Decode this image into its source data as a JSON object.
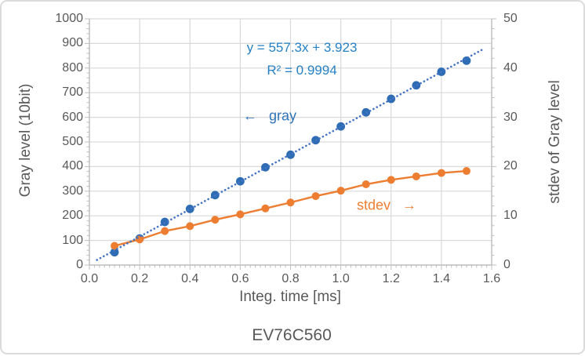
{
  "chart": {
    "title": "EV76C560",
    "x_axis": {
      "label": "Integ. time [ms]",
      "min": 0.0,
      "max": 1.6,
      "tick_step": 0.2,
      "minor_step": 0.02,
      "ticks": [
        "0.0",
        "0.2",
        "0.4",
        "0.6",
        "0.8",
        "1.0",
        "1.2",
        "1.4",
        "1.6"
      ]
    },
    "y_left": {
      "label": "Gray level (10bit)",
      "min": 0,
      "max": 1000,
      "tick_step": 100,
      "minor_step": 20,
      "ticks": [
        "0",
        "100",
        "200",
        "300",
        "400",
        "500",
        "600",
        "700",
        "800",
        "900",
        "1000"
      ]
    },
    "y_right": {
      "label": "stdev of Gray level",
      "min": 0,
      "max": 50,
      "tick_step": 10,
      "minor_step": 2,
      "ticks": [
        "0",
        "10",
        "20",
        "30",
        "40",
        "50"
      ]
    },
    "annotation": {
      "equation": "y = 557.3x + 3.923",
      "r_squared": "R² = 0.9994"
    },
    "series_labels": {
      "gray": "←   gray",
      "stdev": "stdev   →"
    },
    "colors": {
      "gray_series": "#2e6db4",
      "trend": "#4472c4",
      "stdev_series": "#ed7d31",
      "grid": "#d9d9d9",
      "axis": "#bfbfbf",
      "text": "#595959",
      "annotation_text": "#2581c4"
    }
  },
  "chart_data": {
    "type": "scatter+line",
    "title": "EV76C560",
    "xlabel": "Integ. time [ms]",
    "ylabel_left": "Gray level (10bit)",
    "ylabel_right": "stdev of Gray level",
    "xlim": [
      0.0,
      1.6
    ],
    "ylim_left": [
      0,
      1000
    ],
    "ylim_right": [
      0,
      50
    ],
    "grid": true,
    "x": [
      0.1,
      0.2,
      0.3,
      0.4,
      0.5,
      0.6,
      0.7,
      0.8,
      0.9,
      1.0,
      1.1,
      1.2,
      1.3,
      1.4,
      1.5
    ],
    "series": [
      {
        "name": "gray",
        "axis": "left",
        "style": "scatter",
        "values": [
          52,
          108,
          175,
          228,
          284,
          340,
          397,
          448,
          507,
          563,
          620,
          675,
          730,
          785,
          830
        ]
      },
      {
        "name": "stdev",
        "axis": "right",
        "style": "line+marker",
        "values": [
          3.9,
          5.2,
          6.9,
          7.9,
          9.2,
          10.3,
          11.5,
          12.7,
          14.0,
          15.1,
          16.4,
          17.3,
          18.0,
          18.7,
          19.1
        ]
      }
    ],
    "trendline": {
      "series": "gray",
      "slope": 557.3,
      "intercept": 3.923,
      "r2": 0.9994,
      "x_range": [
        0.03,
        1.56
      ],
      "style": "dotted"
    }
  }
}
